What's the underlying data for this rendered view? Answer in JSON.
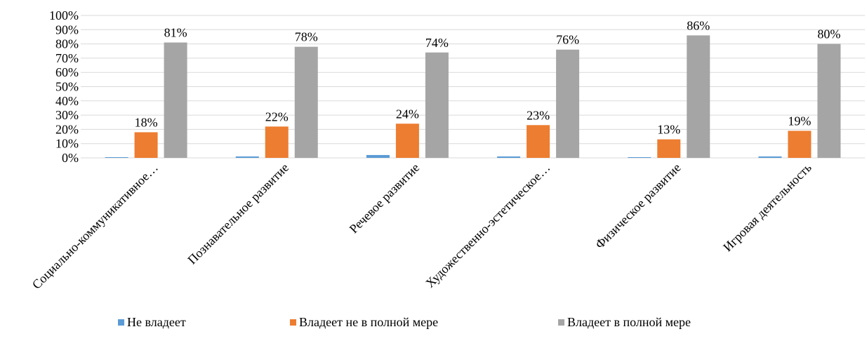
{
  "chart_data": {
    "type": "bar",
    "title": "",
    "xlabel": "",
    "ylabel": "",
    "ylim": [
      0,
      100
    ],
    "yticks": [
      "0%",
      "10%",
      "20%",
      "30%",
      "40%",
      "50%",
      "60%",
      "70%",
      "80%",
      "90%",
      "100%"
    ],
    "grid": true,
    "legend_position": "bottom",
    "categories": [
      "Социально-коммуникативное…",
      "Познавательное развитие",
      "Речевое развитие",
      "Художественно-эстетическое…",
      "Физическое развитие",
      "Игровая деятельность"
    ],
    "series": [
      {
        "name": "Не владеет",
        "color": "#5B9BD5",
        "values": [
          0.5,
          1,
          2,
          1,
          0.5,
          1
        ],
        "show_labels": false
      },
      {
        "name": "Владеет не в полной мере",
        "color": "#ED7D31",
        "values": [
          18,
          22,
          24,
          23,
          13,
          19
        ],
        "labels": [
          "18%",
          "22%",
          "24%",
          "23%",
          "13%",
          "19%"
        ],
        "show_labels": true
      },
      {
        "name": "Владеет в полной мере",
        "color": "#A5A5A5",
        "values": [
          81,
          78,
          74,
          76,
          86,
          80
        ],
        "labels": [
          "81%",
          "78%",
          "74%",
          "76%",
          "86%",
          "80%"
        ],
        "show_labels": true
      }
    ],
    "gridline_color": "#D9D9D9"
  }
}
